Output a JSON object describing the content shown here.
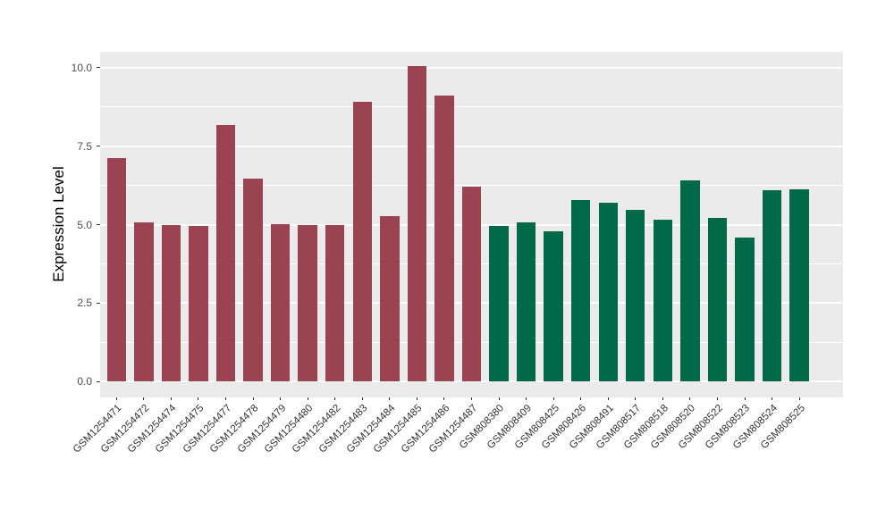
{
  "figure": {
    "background_color": "#FFFFFF",
    "panel_background_color": "#EBEBEB",
    "gridline_color": "#FFFFFF",
    "tick_mark_color": "#333333",
    "axis_text_color": "#4D4D4D",
    "axis_title_color": "#000000",
    "bar_color_group1": "#9C4351",
    "bar_color_group2": "#006948"
  },
  "chart_data": {
    "type": "bar",
    "title": "",
    "xlabel": "",
    "ylabel": "Expression Level",
    "ylim": [
      -0.5,
      10.5
    ],
    "yticks": [
      0,
      2.5,
      5,
      7.5,
      10
    ],
    "ytick_labels": [
      "0.0",
      "2.5",
      "5.0",
      "7.5",
      "10.0"
    ],
    "minor_gridlines": [
      1.25,
      3.75,
      6.25,
      8.75
    ],
    "grid": true,
    "legend_position": "none",
    "categories": [
      "GSM1254471",
      "GSM1254472",
      "GSM1254474",
      "GSM1254475",
      "GSM1254477",
      "GSM1254478",
      "GSM1254479",
      "GSM1254480",
      "GSM1254482",
      "GSM1254483",
      "GSM1254484",
      "GSM1254485",
      "GSM1254486",
      "GSM1254487",
      "GSM808380",
      "GSM808409",
      "GSM808425",
      "GSM808426",
      "GSM808491",
      "GSM808517",
      "GSM808518",
      "GSM808520",
      "GSM808522",
      "GSM808523",
      "GSM808524",
      "GSM808525"
    ],
    "values": [
      7.12,
      5.08,
      5.0,
      4.97,
      8.18,
      6.47,
      5.02,
      5.0,
      5.0,
      8.9,
      5.27,
      10.05,
      9.12,
      6.2,
      4.95,
      5.08,
      4.78,
      5.78,
      5.7,
      5.48,
      5.17,
      6.4,
      5.22,
      4.6,
      6.1,
      6.13
    ],
    "bar_colors": [
      "#9C4351",
      "#9C4351",
      "#9C4351",
      "#9C4351",
      "#9C4351",
      "#9C4351",
      "#9C4351",
      "#9C4351",
      "#9C4351",
      "#9C4351",
      "#9C4351",
      "#9C4351",
      "#9C4351",
      "#9C4351",
      "#006948",
      "#006948",
      "#006948",
      "#006948",
      "#006948",
      "#006948",
      "#006948",
      "#006948",
      "#006948",
      "#006948",
      "#006948",
      "#006948"
    ]
  }
}
